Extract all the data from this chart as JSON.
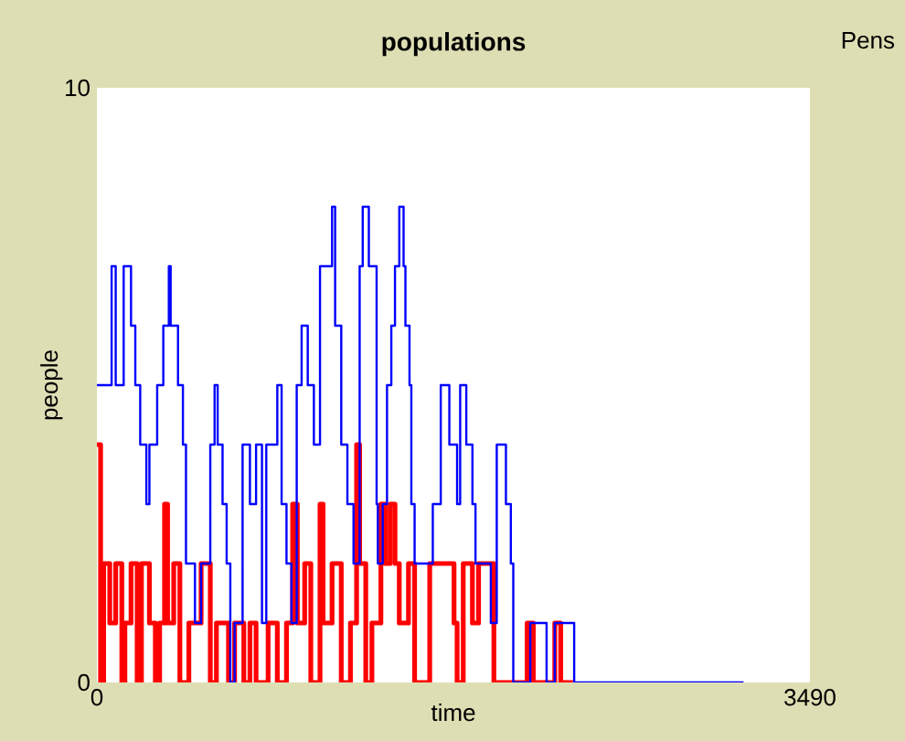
{
  "chart_data": {
    "type": "step",
    "title": "populations",
    "xlabel": "time",
    "ylabel": "people",
    "legend_title": "Pens",
    "xlim": [
      0,
      3490
    ],
    "ylim": [
      0,
      10
    ],
    "xticks": [
      0,
      3490
    ],
    "yticks": [
      0,
      10
    ],
    "grid": false,
    "series": [
      {
        "color": "#ff0000",
        "x": [
          0,
          18,
          33,
          63,
          92,
          122,
          137,
          167,
          197,
          218,
          257,
          286,
          307,
          331,
          346,
          376,
          406,
          450,
          510,
          555,
          585,
          644,
          674,
          719,
          749,
          779,
          838,
          883,
          928,
          958,
          981,
          1017,
          1047,
          1092,
          1107,
          1151,
          1196,
          1241,
          1271,
          1286,
          1316,
          1346,
          1390,
          1411,
          1435,
          1459,
          1480,
          1525,
          1555,
          1629,
          1748,
          1763,
          1793,
          1838,
          1868,
          1943,
          2032,
          2106,
          2136,
          2241,
          2270,
          2330
        ],
        "values": [
          4,
          0,
          2,
          1,
          2,
          0,
          1,
          2,
          0,
          2,
          1,
          0,
          1,
          3,
          1,
          2,
          0,
          1,
          2,
          0,
          1,
          0,
          1,
          0,
          1,
          0,
          1,
          0,
          1,
          3,
          1,
          2,
          0,
          3,
          1,
          2,
          0,
          1,
          4,
          2,
          0,
          1,
          3,
          2,
          3,
          2,
          1,
          2,
          0,
          2,
          1,
          0,
          2,
          1,
          2,
          0,
          0,
          1,
          0,
          1,
          0,
          0
        ]
      },
      {
        "color": "#0000ff",
        "x": [
          0,
          72,
          92,
          131,
          167,
          188,
          212,
          242,
          257,
          295,
          325,
          352,
          361,
          397,
          421,
          436,
          480,
          510,
          555,
          576,
          591,
          615,
          635,
          653,
          674,
          713,
          749,
          779,
          808,
          829,
          883,
          904,
          928,
          952,
          978,
          1002,
          1032,
          1062,
          1092,
          1151,
          1166,
          1196,
          1226,
          1256,
          1286,
          1301,
          1331,
          1369,
          1375,
          1399,
          1420,
          1441,
          1459,
          1480,
          1501,
          1510,
          1530,
          1539,
          1555,
          1644,
          1683,
          1725,
          1763,
          1778,
          1808,
          1838,
          1853,
          1928,
          1957,
          2002,
          2026,
          2038,
          2121,
          2201,
          2241,
          2336,
          3165
        ],
        "values": [
          5,
          7,
          5,
          7,
          6,
          5,
          4,
          3,
          4,
          5,
          6,
          7,
          6,
          5,
          4,
          2,
          1,
          2,
          4,
          5,
          4,
          3,
          2,
          0,
          1,
          4,
          3,
          4,
          1,
          4,
          5,
          3,
          2,
          1,
          5,
          6,
          5,
          4,
          7,
          8,
          6,
          4,
          3,
          2,
          7,
          8,
          7,
          3,
          2,
          3,
          5,
          6,
          7,
          8,
          7,
          6,
          5,
          3,
          2,
          3,
          5,
          4,
          3,
          5,
          4,
          3,
          2,
          1,
          4,
          3,
          2,
          0,
          1,
          0,
          1,
          0,
          0
        ]
      }
    ]
  }
}
